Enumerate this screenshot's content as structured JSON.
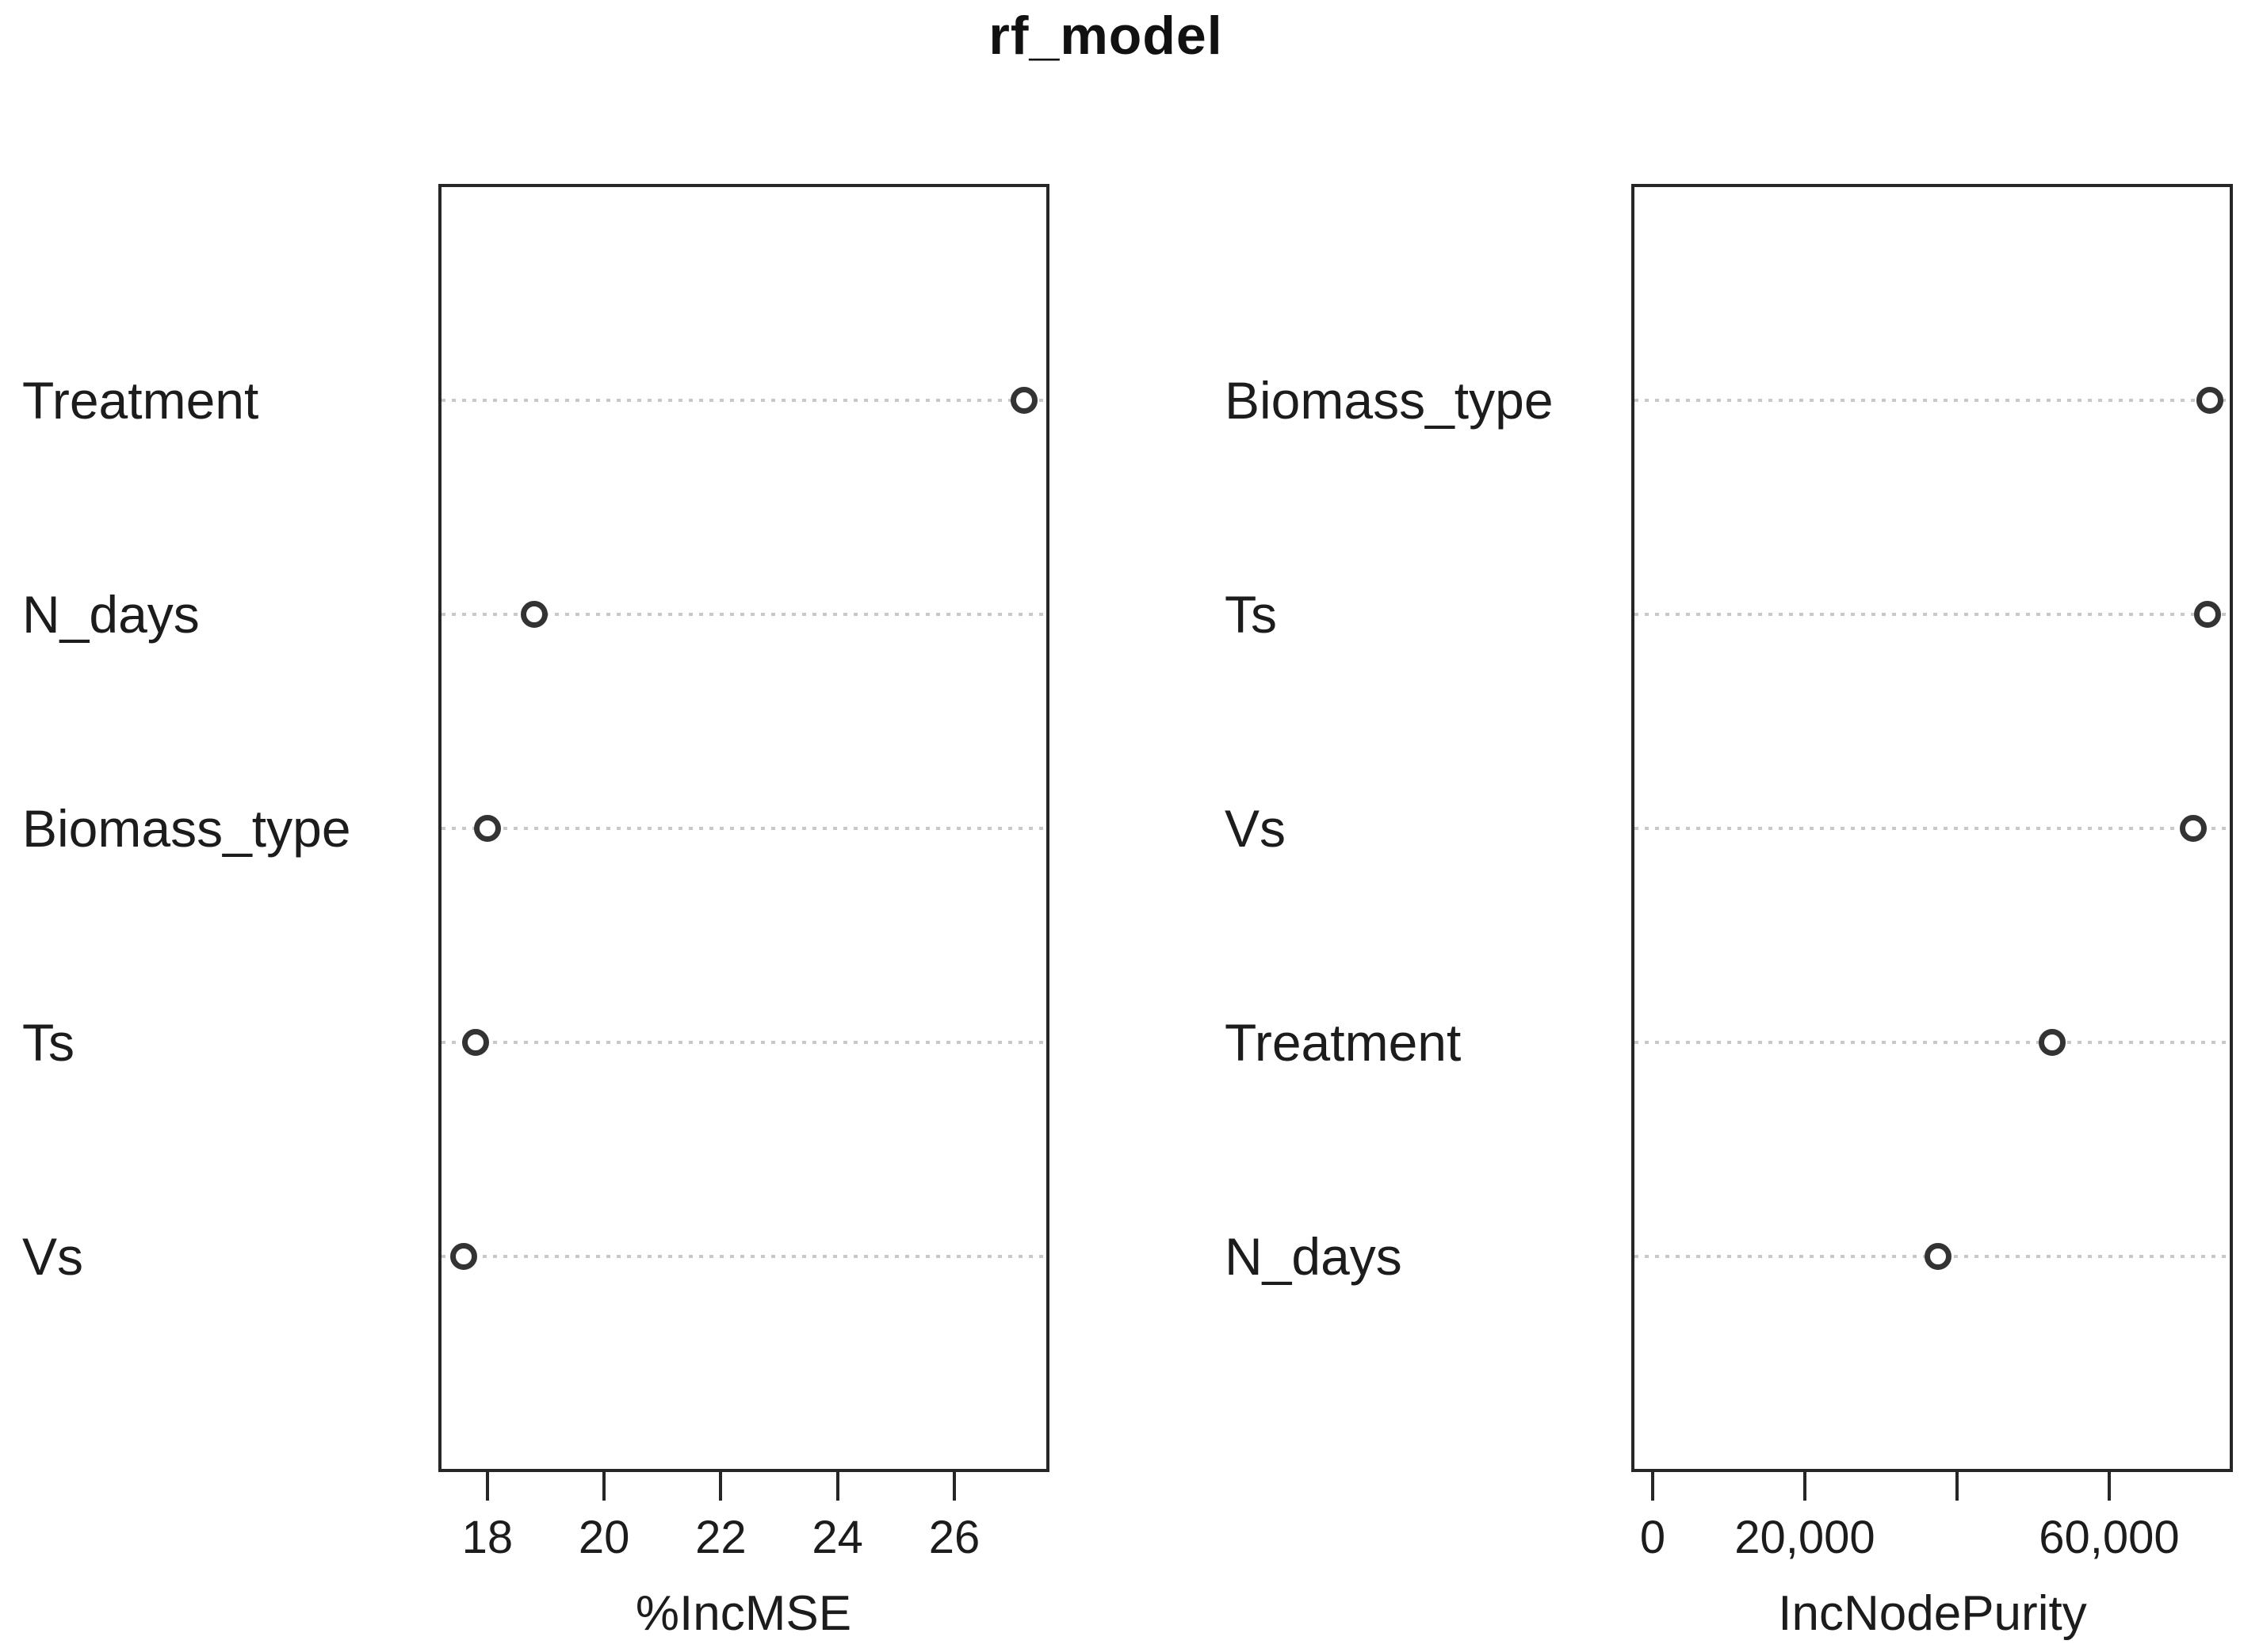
{
  "figure": {
    "title": "rf_model"
  },
  "colors": {
    "background": "#ffffff",
    "text": "#1a1a1a",
    "box_border": "#262626",
    "dotted_grid": "#c8c8c8",
    "marker_stroke": "#333333"
  },
  "chart_data": [
    {
      "type": "scatter",
      "subtype": "dotchart",
      "panel": "left",
      "title": "",
      "xlabel": "%IncMSE",
      "ylabel": "",
      "categories": [
        "Treatment",
        "N_days",
        "Biomass_type",
        "Ts",
        "Vs"
      ],
      "values": [
        27.2,
        18.8,
        18.0,
        17.8,
        17.6
      ],
      "xlim": [
        17.16,
        27.63
      ],
      "xticks": [
        18,
        20,
        22,
        24,
        26
      ],
      "xtick_labels": [
        "18",
        "20",
        "22",
        "24",
        "26"
      ],
      "grid": "dotted-horizontal-rows",
      "legend": "none",
      "marker": "open-circle"
    },
    {
      "type": "scatter",
      "subtype": "dotchart",
      "panel": "right",
      "title": "",
      "xlabel": "IncNodePurity",
      "ylabel": "",
      "categories": [
        "Biomass_type",
        "Ts",
        "Vs",
        "Treatment",
        "N_days"
      ],
      "values": [
        73200,
        72900,
        71000,
        52500,
        37500
      ],
      "xlim": [
        -2810,
        76250
      ],
      "xticks": [
        0,
        20000,
        40000,
        60000
      ],
      "xtick_labels": [
        "0",
        "20,000",
        "",
        "60,000"
      ],
      "grid": "dotted-horizontal-rows",
      "legend": "none",
      "marker": "open-circle"
    }
  ]
}
